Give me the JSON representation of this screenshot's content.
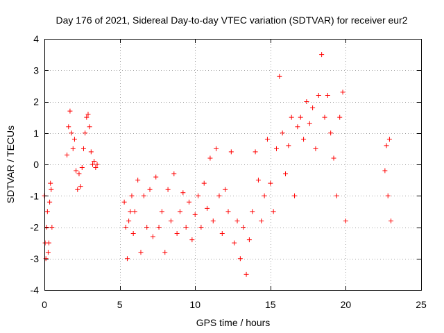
{
  "chart_data": {
    "type": "scatter",
    "title": "Day 176 of 2021, Sidereal Day-to-day VTEC variation (SDTVAR) for receiver eur2",
    "xlabel": "GPS time / hours",
    "ylabel": "SDTVAR / TECUs",
    "xlim": [
      0,
      25
    ],
    "ylim": [
      -4,
      4
    ],
    "xticks": [
      0,
      5,
      10,
      15,
      20,
      25
    ],
    "yticks": [
      -4,
      -3,
      -2,
      -1,
      0,
      1,
      2,
      3,
      4
    ],
    "grid": true,
    "marker": "+",
    "color": "#ff0000",
    "series": [
      {
        "name": "SDTVAR",
        "x": [
          0.0,
          0.05,
          0.1,
          0.15,
          0.2,
          0.25,
          0.3,
          0.35,
          0.4,
          0.45,
          0.5,
          1.5,
          1.6,
          1.7,
          1.8,
          1.9,
          2.0,
          2.1,
          2.2,
          2.3,
          2.4,
          2.5,
          2.6,
          2.7,
          2.8,
          2.9,
          3.0,
          3.1,
          3.2,
          3.3,
          3.4,
          3.5,
          5.3,
          5.4,
          5.5,
          5.6,
          5.7,
          5.8,
          5.9,
          6.0,
          6.2,
          6.4,
          6.6,
          6.8,
          7.0,
          7.2,
          7.4,
          7.6,
          7.8,
          8.0,
          8.2,
          8.4,
          8.6,
          8.8,
          9.0,
          9.2,
          9.4,
          9.6,
          9.8,
          10.0,
          10.2,
          10.4,
          10.6,
          10.8,
          11.0,
          11.2,
          11.4,
          11.6,
          11.8,
          12.0,
          12.2,
          12.4,
          12.6,
          12.8,
          13.0,
          13.2,
          13.4,
          13.6,
          13.8,
          14.0,
          14.2,
          14.4,
          14.6,
          14.8,
          15.0,
          15.2,
          15.4,
          15.6,
          15.8,
          16.0,
          16.2,
          16.4,
          16.6,
          16.8,
          17.0,
          17.2,
          17.4,
          17.6,
          17.8,
          18.0,
          18.2,
          18.4,
          18.6,
          18.8,
          19.0,
          19.2,
          19.4,
          19.6,
          19.8,
          20.0,
          22.6,
          22.7,
          22.8,
          22.9,
          23.0
        ],
        "y": [
          -1.0,
          -2.5,
          -3.0,
          -2.0,
          -1.5,
          -2.8,
          -2.5,
          -1.2,
          -0.6,
          -0.8,
          -2.0,
          0.3,
          1.2,
          1.7,
          1.0,
          0.5,
          0.8,
          -0.2,
          -0.8,
          -0.3,
          -0.7,
          -0.1,
          0.5,
          1.0,
          1.5,
          1.6,
          1.2,
          0.4,
          0.0,
          0.1,
          -0.1,
          0.0,
          -1.2,
          -2.0,
          -3.0,
          -1.8,
          -1.5,
          -1.0,
          -2.2,
          -1.5,
          -0.5,
          -2.8,
          -1.0,
          -2.0,
          -0.8,
          -2.3,
          -0.4,
          -2.0,
          -1.5,
          -2.8,
          -0.8,
          -1.8,
          -0.3,
          -2.2,
          -1.5,
          -0.9,
          -2.0,
          -1.2,
          -2.4,
          -1.6,
          -1.0,
          -2.0,
          -0.6,
          -1.4,
          0.2,
          -1.8,
          0.5,
          -1.0,
          -2.2,
          -0.8,
          -1.5,
          0.4,
          -2.5,
          -1.8,
          -3.0,
          -2.0,
          -3.5,
          -2.4,
          -1.5,
          0.4,
          -0.5,
          -1.8,
          -1.0,
          0.8,
          -0.6,
          -1.5,
          0.5,
          2.8,
          1.0,
          -0.3,
          0.6,
          1.5,
          -1.0,
          1.2,
          1.5,
          0.8,
          2.0,
          1.3,
          1.8,
          0.5,
          2.2,
          3.5,
          1.5,
          2.2,
          1.0,
          0.2,
          -1.0,
          1.5,
          2.3,
          -1.8,
          -0.2,
          0.6,
          -1.0,
          0.8,
          -1.8
        ]
      }
    ]
  }
}
